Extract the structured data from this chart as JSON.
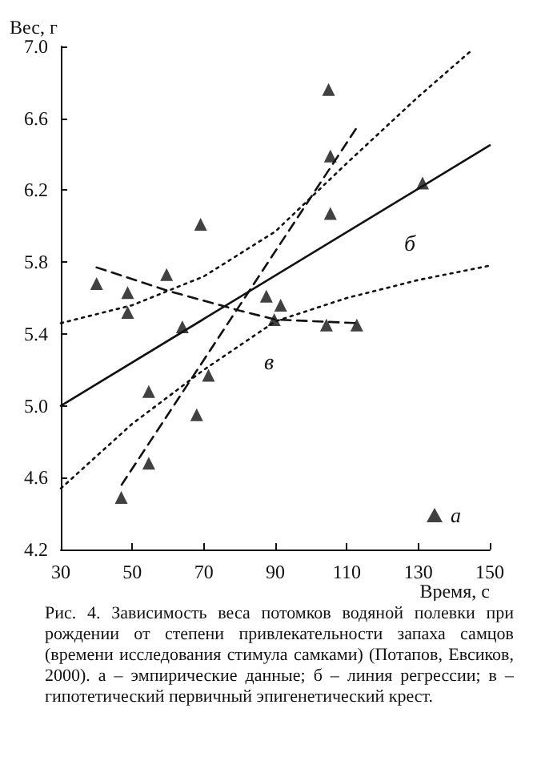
{
  "chart_data": {
    "type": "scatter",
    "xlabel": "Время, с",
    "ylabel": "Вес, г",
    "xlim": [
      30,
      150
    ],
    "xticks": [
      30,
      50,
      70,
      90,
      110,
      130,
      150
    ],
    "ylim": [
      4.2,
      7.0
    ],
    "yticks": [
      4.2,
      4.6,
      {
        "value": 5,
        "label": "5.0"
      },
      5.4,
      5.8,
      6.2,
      6.6,
      {
        "value": 7,
        "label": "7.0"
      }
    ],
    "grid": false,
    "legend": "bottom right",
    "marker": "triangle",
    "series": [
      {
        "name": "а",
        "color": "#111111",
        "x": [
          40,
          48.7,
          48.7,
          59.6,
          69.1,
          87.5,
          91.5,
          104.9,
          105.4,
          105.4,
          131.2,
          64,
          89.7,
          104.3,
          112.8,
          54.6,
          71.3,
          68,
          54.6,
          46.9
        ],
        "values": [
          5.68,
          5.63,
          5.52,
          5.73,
          6.01,
          5.61,
          5.56,
          6.76,
          6.39,
          6.07,
          6.24,
          5.44,
          5.48,
          5.45,
          5.45,
          5.08,
          5.17,
          4.95,
          4.68,
          4.49
        ]
      },
      {
        "type": "line",
        "color": "#111111",
        "line_style": "solid",
        "marker": "none",
        "x": [
          30,
          150
        ],
        "values": [
          5.0,
          6.45
        ]
      },
      {
        "type": "line",
        "color": "#111111",
        "line_style": "dashed",
        "marker": "none",
        "x": [
          40,
          60,
          80,
          90,
          113
        ],
        "values": [
          5.77,
          5.64,
          5.53,
          5.48,
          5.46
        ]
      },
      {
        "type": "line",
        "color": "#111111",
        "line_style": "dashed",
        "marker": "none",
        "x": [
          47,
          112.5
        ],
        "values": [
          4.56,
          6.54
        ]
      },
      {
        "type": "line",
        "color": "#111111",
        "line_style": "dotted",
        "marker": "none",
        "x": [
          30,
          50,
          70,
          90,
          110,
          130,
          145
        ],
        "values": [
          5.46,
          5.56,
          5.72,
          5.97,
          6.35,
          6.72,
          6.98
        ]
      },
      {
        "type": "line",
        "color": "#111111",
        "line_style": "dotted",
        "marker": "none",
        "x": [
          30,
          50,
          70,
          90,
          110,
          130,
          150
        ],
        "values": [
          4.54,
          4.9,
          5.2,
          5.47,
          5.6,
          5.7,
          5.78
        ]
      }
    ],
    "annotations": [
      "б",
      "в",
      "Рис. 4. Зависимость веса потомков водяной полевки при рождении от степени привлекательности запаха самцов (времени исследования стимула самками) (Потапов, Евсиков, 2000). а – эмпирические данные; б – линия регрессии; в – гипотетический первичный эпигенетический крест."
    ]
  }
}
